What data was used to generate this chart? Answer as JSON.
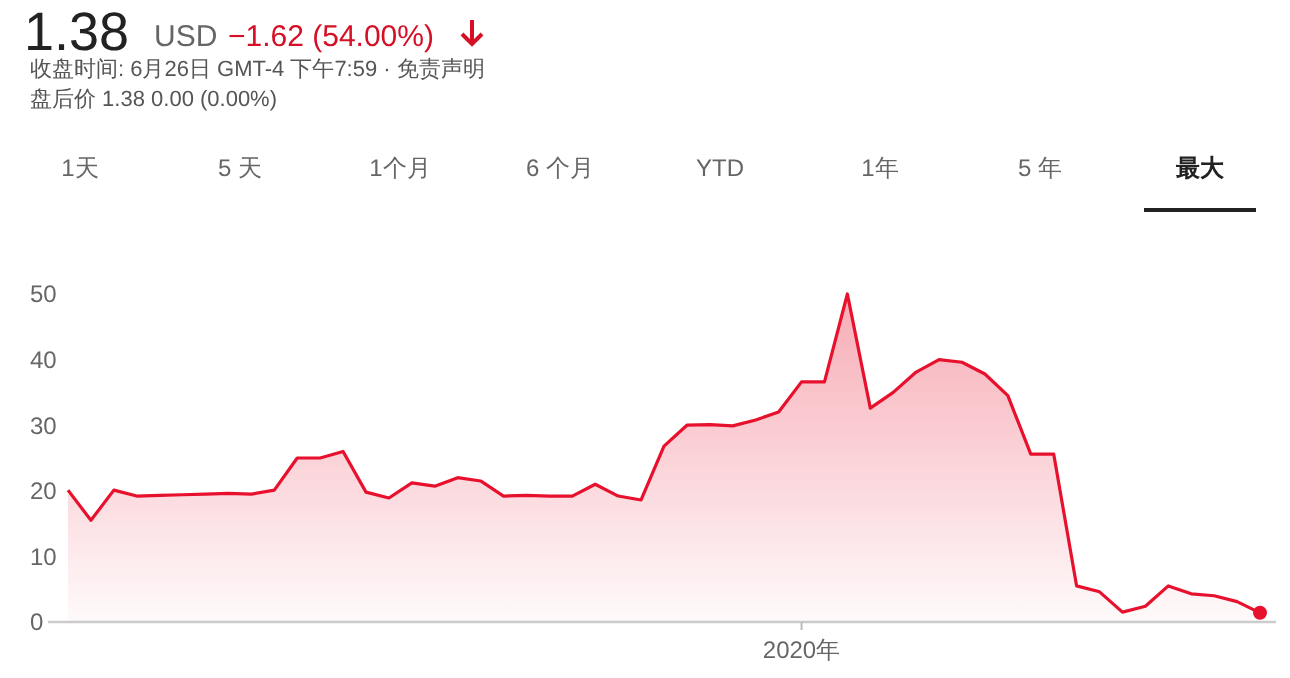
{
  "chart_data": {
    "type": "area",
    "title": "1.38",
    "annotations": [
      "USD",
      "−1.62 (54.00%)",
      "收盘时间: 6月26日 GMT-4 下午7:59 · 免责声明",
      "盘后价 1.38 0.00 (0.00%)",
      "1天",
      "5 天",
      "1个月",
      "6 个月",
      "YTD",
      "1年",
      "5 年",
      "最大"
    ],
    "categories": [
      null,
      null,
      null,
      null,
      null,
      null,
      null,
      null,
      null,
      null,
      null,
      null,
      null,
      null,
      null,
      null,
      null,
      null,
      null,
      null,
      null,
      null,
      null,
      null,
      null,
      null,
      null,
      null,
      null,
      null,
      null,
      null,
      "2020年",
      null,
      null,
      null,
      null,
      null,
      null,
      null,
      null,
      null,
      null,
      null,
      null,
      null,
      null,
      null,
      null,
      null,
      null,
      null,
      null
    ],
    "series": [
      {
        "color": "#e8112d",
        "values": [
          20.1,
          15.5,
          20.1,
          19.2,
          19.3,
          19.4,
          19.5,
          19.6,
          19.5,
          20.1,
          25,
          25,
          26,
          19.8,
          18.9,
          21.2,
          20.7,
          22,
          21.5,
          19.2,
          19.3,
          19.2,
          19.2,
          21,
          19.2,
          18.6,
          26.8,
          30,
          30.1,
          29.9,
          30.8,
          32,
          36.6,
          36.6,
          50,
          32.6,
          35,
          38.1,
          40,
          39.6,
          37.8,
          34.5,
          25.6,
          25.6,
          5.5,
          4.6,
          1.5,
          2.4,
          5.5,
          4.3,
          4,
          3.1,
          1.4
        ]
      }
    ],
    "ylim": [
      0,
      50
    ],
    "yticks": [
      0,
      10,
      20,
      30,
      40,
      50
    ],
    "grid": false
  }
}
